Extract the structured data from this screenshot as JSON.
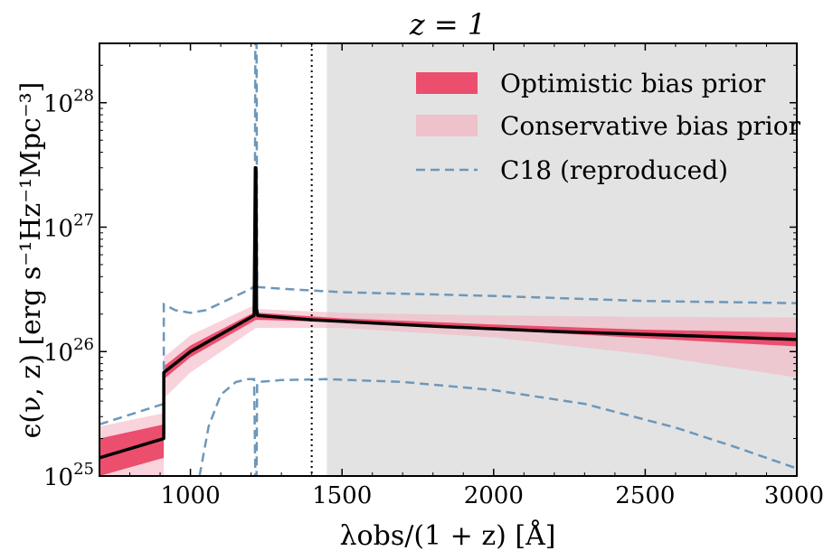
{
  "chart_data": {
    "type": "line",
    "title": "z = 1",
    "xlabel": "λobs/(1 + z) [Å]",
    "ylabel": "ϵ(ν, z) [erg s⁻¹Hz⁻¹Mpc⁻³]",
    "xscale": "linear",
    "yscale": "log",
    "xlim": [
      700,
      3000
    ],
    "ylim": [
      1e+25,
      3e+28
    ],
    "x_ticks": [
      1000,
      1500,
      2000,
      2500,
      3000
    ],
    "x_tick_labels": [
      "1000",
      "1500",
      "2000",
      "2500",
      "3000"
    ],
    "y_ticks": [
      1e+25,
      1e+26,
      1e+27,
      1e+28
    ],
    "y_tick_labels": [
      {
        "base": "10",
        "exp": "25"
      },
      {
        "base": "10",
        "exp": "26"
      },
      {
        "base": "10",
        "exp": "27"
      },
      {
        "base": "10",
        "exp": "28"
      }
    ],
    "legend_position": "top-right",
    "legend": [
      {
        "label": "Optimistic bias prior",
        "style": "fill",
        "color": "#ec4e6e"
      },
      {
        "label": "Conservative bias prior",
        "style": "fill",
        "color": "#f3b6c3"
      },
      {
        "label": "C18 (reproduced)",
        "style": "dashed",
        "color": "#6e97b8"
      }
    ],
    "vertical_line": {
      "x": 1400,
      "style": "dotted",
      "color": "#000000"
    },
    "shaded_region": {
      "x_start": 1450,
      "x_end": 3000,
      "color": "#e3e3e3"
    },
    "series": [
      {
        "name": "Median emissivity",
        "color": "#000000",
        "x": [
          700,
          912,
          912.1,
          1000,
          1210,
          1214,
          1216,
          1218,
          1222,
          1400,
          1800,
          2200,
          2600,
          3000
        ],
        "y": [
          1.4e+25,
          2e+25,
          6.8e+25,
          1e+26,
          1.95e+26,
          3e+27,
          3e+27,
          2.2e+26,
          1.95e+26,
          1.8e+26,
          1.6e+26,
          1.45e+26,
          1.35e+26,
          1.25e+26
        ]
      },
      {
        "name": "Optimistic bias prior",
        "style": "band",
        "color": "#ec4e6e",
        "x": [
          700,
          912,
          912.1,
          1000,
          1216,
          1222,
          1500,
          2000,
          2500,
          3000
        ],
        "lower": [
          1e+25,
          1.4e+25,
          6e+25,
          9e+25,
          1.8e+26,
          1.8e+26,
          1.72e+26,
          1.5e+26,
          1.28e+26,
          1.1e+26
        ],
        "upper": [
          2e+25,
          2.6e+25,
          7.6e+25,
          1.12e+26,
          2.1e+26,
          2.05e+26,
          1.85e+26,
          1.65e+26,
          1.5e+26,
          1.42e+26
        ]
      },
      {
        "name": "Conservative bias prior",
        "style": "band",
        "color": "#f3b6c3",
        "x": [
          700,
          912,
          912.1,
          1000,
          1216,
          1222,
          1500,
          2000,
          2500,
          3000
        ],
        "lower": [
          1e+25,
          1e+25,
          4.2e+25,
          6.8e+25,
          1.55e+26,
          1.55e+26,
          1.55e+26,
          1.3e+26,
          9.5e+25,
          6.2e+25
        ],
        "upper": [
          2.5e+25,
          3.2e+25,
          9e+25,
          1.35e+26,
          2.4e+26,
          2.2e+26,
          2.05e+26,
          1.95e+26,
          1.9e+26,
          1.88e+26
        ]
      },
      {
        "name": "C18 (reproduced) upper",
        "style": "dashed",
        "color": "#6e97b8",
        "x": [
          700,
          912,
          912.1,
          950,
          1000,
          1050,
          1100,
          1150,
          1200,
          1212,
          1214,
          1216,
          1218,
          1220,
          1222,
          1300,
          1500,
          2000,
          2500,
          3000
        ],
        "y": [
          2.6e+25,
          3.8e+25,
          2.4e+26,
          2.15e+26,
          2.05e+26,
          2.15e+26,
          2.45e+26,
          2.8e+26,
          3.2e+26,
          3.4e+26,
          3e+28,
          3e+28,
          3e+28,
          3.4e+26,
          3.3e+26,
          3.2e+26,
          3e+26,
          2.8e+26,
          2.55e+26,
          2.45e+26
        ]
      },
      {
        "name": "C18 (reproduced) lower",
        "style": "dashed",
        "color": "#6e97b8",
        "x": [
          1030,
          1060,
          1100,
          1150,
          1190,
          1210,
          1214,
          1216,
          1218,
          1220,
          1222,
          1300,
          1450,
          1700,
          2000,
          2300,
          2600,
          2800,
          3000
        ],
        "y": [
          1e+25,
          2.5e+25,
          4.5e+25,
          5.7e+25,
          6e+25,
          6e+25,
          1e+25,
          1e+25,
          1e+25,
          5.6e+25,
          5.7e+25,
          5.9e+25,
          6e+25,
          5.7e+25,
          4.9e+25,
          3.8e+25,
          2.45e+25,
          1.7e+25,
          1.15e+25
        ]
      }
    ]
  }
}
